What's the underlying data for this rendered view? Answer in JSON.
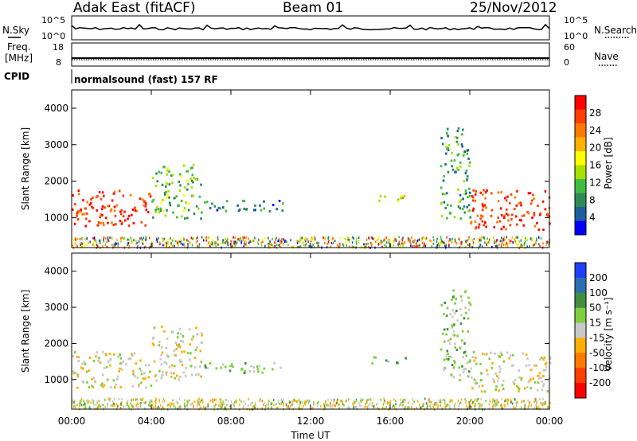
{
  "header": {
    "station": "Adak East (fitACF)",
    "beam": "Beam 01",
    "date": "25/Nov/2012"
  },
  "top_panels": {
    "nsky": {
      "label": "N.Sky",
      "ticks": [
        "10^5",
        "10^0"
      ]
    },
    "nsearch": {
      "label": "N.Search",
      "ticks": [
        "10^5",
        "10^0"
      ]
    },
    "freq": {
      "label_line1": "Freq.",
      "label_line2": "[MHz]",
      "ticks": [
        "18",
        "8"
      ]
    },
    "nave": {
      "label": "Nave",
      "ticks": [
        "60",
        "0"
      ]
    },
    "cpid": {
      "label": "CPID",
      "text": "normalsound (fast) 157 RF"
    }
  },
  "power_colorbar": {
    "label": "Power [dB]",
    "ticks": [
      "28",
      "24",
      "20",
      "16",
      "12",
      "8",
      "4"
    ],
    "colors": [
      "#ff0000",
      "#ff3f00",
      "#ff7a00",
      "#ffb300",
      "#ffff00",
      "#a8e000",
      "#3fbf3f",
      "#2e8b57",
      "#1f5f9f",
      "#0000ff"
    ]
  },
  "velocity_colorbar": {
    "label": "Velocity [m s⁻¹]",
    "ticks": [
      "200",
      "100",
      "50",
      "15",
      "-15",
      "-50",
      "-100",
      "-200"
    ],
    "colors": [
      "#1f3fff",
      "#2d6fb0",
      "#3f8f3f",
      "#7fd03f",
      "#c8c8c8",
      "#ffb000",
      "#ff7a00",
      "#ff3f00",
      "#ff0000"
    ]
  },
  "chart_data": [
    {
      "type": "heatmap",
      "name": "power",
      "ylabel": "Slant Range [km]",
      "ylim": [
        180,
        4500
      ],
      "yticks": [
        "4000",
        "3000",
        "2000",
        "1000"
      ],
      "xlim": [
        0,
        24
      ],
      "regions": [
        {
          "t0": 0.0,
          "t1": 4.0,
          "r0": 800,
          "r1": 1800,
          "value": 26
        },
        {
          "t0": 4.0,
          "t1": 6.5,
          "r0": 1000,
          "r1": 2500,
          "value": 10
        },
        {
          "t0": 6.5,
          "t1": 10.8,
          "r0": 1200,
          "r1": 1500,
          "value": 6
        },
        {
          "t0": 15.0,
          "t1": 16.8,
          "r0": 1450,
          "r1": 1650,
          "value": 14
        },
        {
          "t0": 18.5,
          "t1": 20.0,
          "r0": 1000,
          "r1": 3500,
          "value": 8
        },
        {
          "t0": 20.0,
          "t1": 24.0,
          "r0": 700,
          "r1": 1800,
          "value": 26
        }
      ]
    },
    {
      "type": "heatmap",
      "name": "velocity",
      "xlabel": "Time UT",
      "ylabel": "Slant Range [km]",
      "ylim": [
        180,
        4500
      ],
      "yticks": [
        "4000",
        "3000",
        "2000",
        "1000"
      ],
      "xticks": [
        "00:00",
        "04:00",
        "08:00",
        "12:00",
        "16:00",
        "20:00",
        "00:00"
      ],
      "xlim": [
        0,
        24
      ],
      "regions": [
        {
          "t0": 0.0,
          "t1": 4.0,
          "r0": 800,
          "r1": 1800,
          "value": 0
        },
        {
          "t0": 4.0,
          "t1": 6.5,
          "r0": 1000,
          "r1": 2500,
          "value": 0
        },
        {
          "t0": 6.5,
          "t1": 10.8,
          "r0": 1200,
          "r1": 1500,
          "value": 30
        },
        {
          "t0": 15.0,
          "t1": 16.8,
          "r0": 1450,
          "r1": 1650,
          "value": 40
        },
        {
          "t0": 18.5,
          "t1": 20.0,
          "r0": 1000,
          "r1": 3500,
          "value": 30
        },
        {
          "t0": 20.0,
          "t1": 24.0,
          "r0": 700,
          "r1": 1800,
          "value": 0
        }
      ]
    }
  ]
}
